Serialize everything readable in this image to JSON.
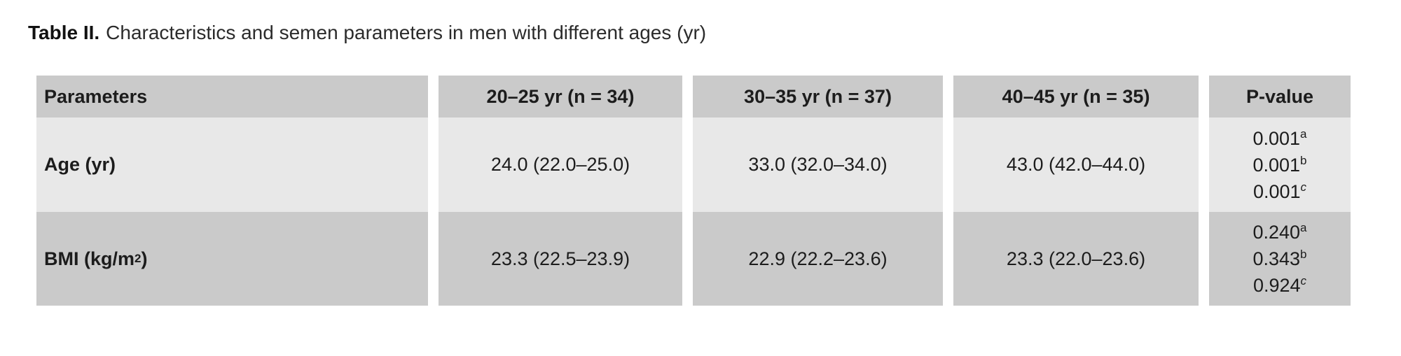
{
  "title": {
    "label": "Table II.",
    "caption": "Characteristics and semen parameters in men with different ages (yr)"
  },
  "table": {
    "headers": [
      "Parameters",
      "20–25 yr (n = 34)",
      "30–35 yr (n = 37)",
      "40–45 yr (n = 35)",
      "P-value"
    ],
    "rows": [
      {
        "parameter": {
          "prefix": "Age (yr)",
          "sup": "",
          "suffix": ""
        },
        "values": [
          "24.0 (22.0–25.0)",
          "33.0 (32.0–34.0)",
          "43.0 (42.0–44.0)"
        ],
        "p_values": [
          {
            "value": "0.001",
            "sup": "a"
          },
          {
            "value": "0.001",
            "sup": "b"
          },
          {
            "value": "0.001",
            "sup": "c"
          }
        ]
      },
      {
        "parameter": {
          "prefix": "BMI (kg/m",
          "sup": "2",
          "suffix": ")"
        },
        "values": [
          "23.3 (22.5–23.9)",
          "22.9 (22.2–23.6)",
          "23.3 (22.0–23.6)"
        ],
        "p_values": [
          {
            "value": "0.240",
            "sup": "a"
          },
          {
            "value": "0.343",
            "sup": "b"
          },
          {
            "value": "0.924",
            "sup": "c"
          }
        ]
      }
    ]
  },
  "colors": {
    "header_bg": "#cacaca",
    "row_light_bg": "#e8e8e8",
    "row_dark_bg": "#cacaca",
    "text": "#1c1c1c",
    "background": "#ffffff"
  }
}
